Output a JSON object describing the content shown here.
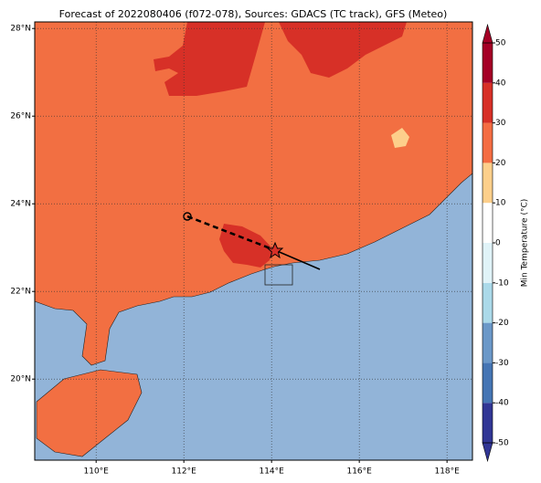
{
  "title": "Forecast of 2022080406 (f072-078), Sources: GDACS (TC track), GFS (Meteo)",
  "map": {
    "xlim": [
      108.6,
      118.58
    ],
    "ylim": [
      18.15,
      28.15
    ],
    "xticks": [
      {
        "value": 110,
        "label": "110°E"
      },
      {
        "value": 112,
        "label": "112°E"
      },
      {
        "value": 114,
        "label": "114°E"
      },
      {
        "value": 116,
        "label": "116°E"
      },
      {
        "value": 118,
        "label": "118°E"
      }
    ],
    "yticks": [
      {
        "value": 20,
        "label": "20°N"
      },
      {
        "value": 22,
        "label": "22°N"
      },
      {
        "value": 24,
        "label": "24°N"
      },
      {
        "value": 26,
        "label": "26°N"
      },
      {
        "value": 28,
        "label": "28°N"
      }
    ],
    "grid": true
  },
  "colorbar": {
    "label": "Min Temperature (°C)",
    "lim": [
      -50,
      50
    ],
    "ticks": [
      -50,
      -40,
      -30,
      -20,
      -10,
      0,
      10,
      20,
      30,
      40,
      50
    ],
    "colors": [
      "#313695",
      "#4575b4",
      "#6b98c8",
      "#abd9e9",
      "#e0f3f8",
      "#ffffff",
      "#fdcf8b",
      "#f46d43",
      "#d73027",
      "#a50026"
    ]
  }
}
